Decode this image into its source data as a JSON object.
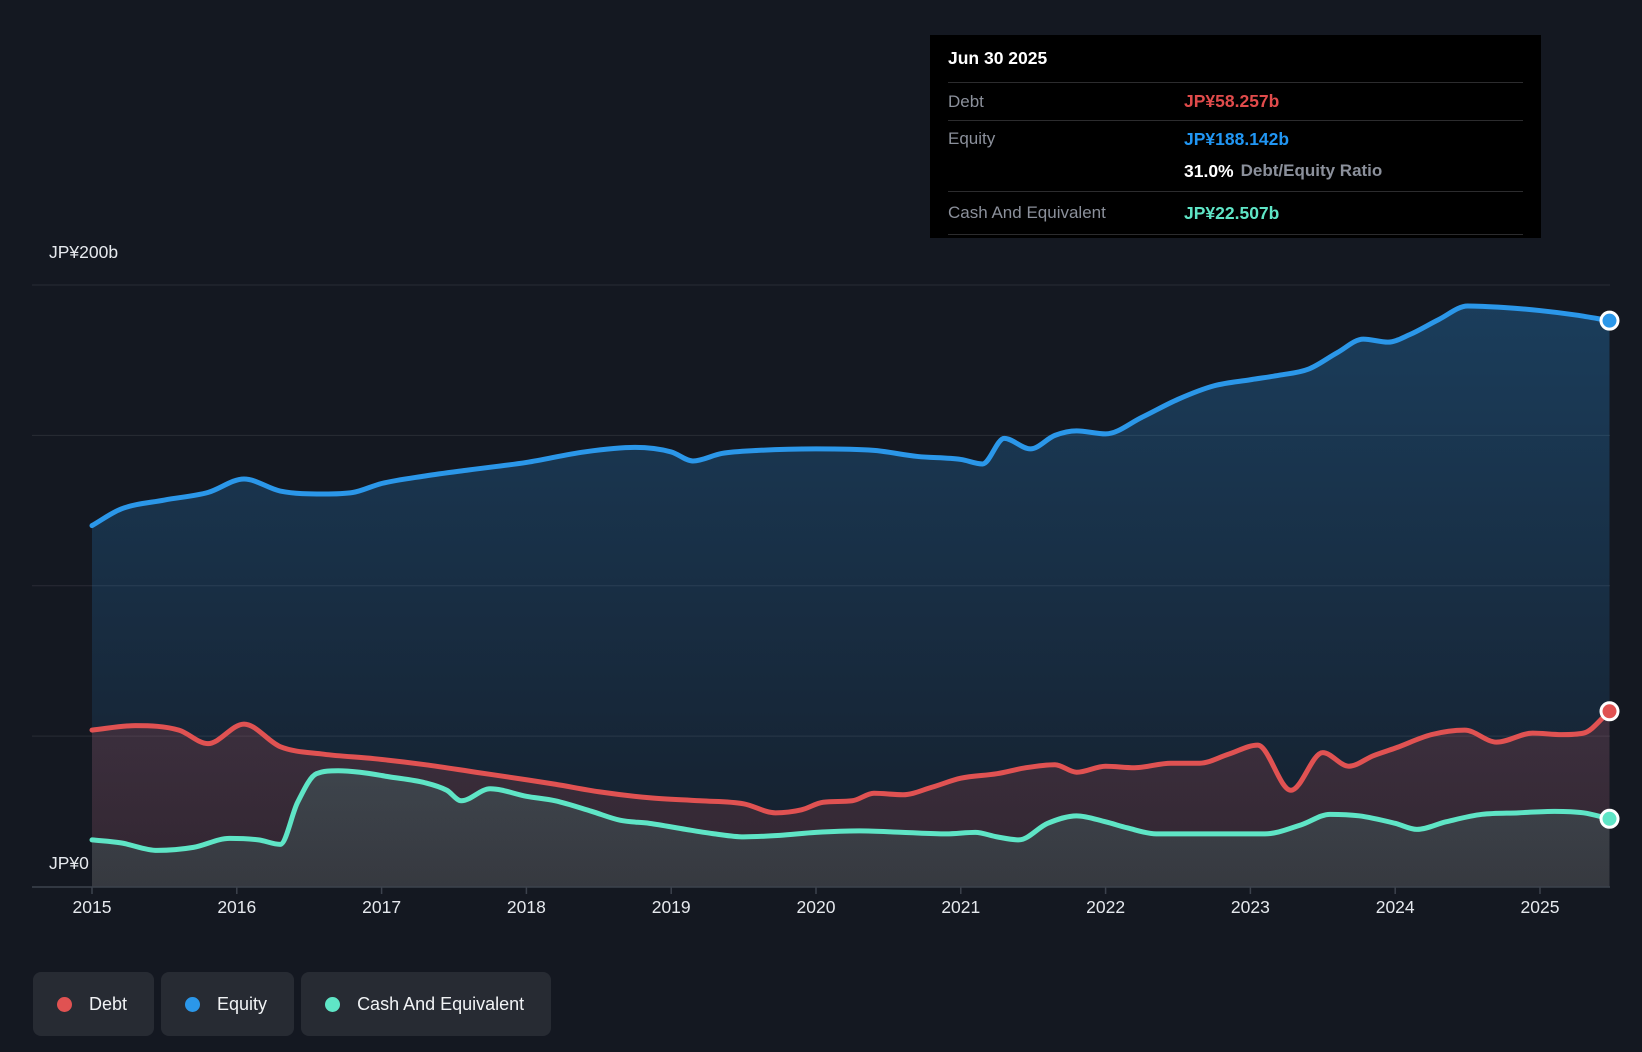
{
  "tooltip": {
    "date": "Jun 30 2025",
    "debt_label": "Debt",
    "debt_value": "JP¥58.257b",
    "equity_label": "Equity",
    "equity_value": "JP¥188.142b",
    "ratio_value": "31.0%",
    "ratio_label": "Debt/Equity Ratio",
    "cash_label": "Cash And Equivalent",
    "cash_value": "JP¥22.507b"
  },
  "axes": {
    "y_top_label": "JP¥200b",
    "y_zero_label": "JP¥0",
    "x_ticks": [
      "2015",
      "2016",
      "2017",
      "2018",
      "2019",
      "2020",
      "2021",
      "2022",
      "2023",
      "2024",
      "2025"
    ]
  },
  "legend": [
    {
      "label": "Debt",
      "color": "#e05252"
    },
    {
      "label": "Equity",
      "color": "#2b97e9"
    },
    {
      "label": "Cash And Equivalent",
      "color": "#5fe5c6"
    }
  ],
  "colors": {
    "debt": "#e05252",
    "equity": "#2b97e9",
    "cash": "#5fe5c6",
    "debt_value_text": "#e04b4b",
    "equity_value_text": "#2196f3",
    "cash_value_text": "#5fe5c6",
    "page_bg": "#141821",
    "tooltip_bg": "#000000",
    "grid": "rgba(255,255,255,0.09)",
    "axis": "#3c424d",
    "axis_label": "#e6e9ee",
    "muted_label": "#8b909b"
  },
  "chart_data": {
    "type": "area",
    "title": "Debt to Equity History (JP¥ billions)",
    "x_range": [
      2015,
      2025.48
    ],
    "y_range": [
      0,
      200
    ],
    "grid": true,
    "gridline_values": [
      200,
      150,
      100,
      50
    ],
    "y_axis_labeled_values": [
      200,
      0
    ],
    "legend_position": "bottom-left",
    "marker_on_last_point": true,
    "series": [
      {
        "name": "Equity",
        "color_key": "equity",
        "last_value_label": "JP¥188.142b",
        "points": [
          [
            2015.0,
            120
          ],
          [
            2015.2,
            125.5
          ],
          [
            2015.5,
            128.5
          ],
          [
            2015.8,
            131
          ],
          [
            2016.05,
            135.5
          ],
          [
            2016.3,
            131.5
          ],
          [
            2016.6,
            130.5
          ],
          [
            2016.8,
            131
          ],
          [
            2017.0,
            134
          ],
          [
            2017.3,
            136.5
          ],
          [
            2017.6,
            138.5
          ],
          [
            2018.0,
            141
          ],
          [
            2018.4,
            144.5
          ],
          [
            2018.75,
            146
          ],
          [
            2019.0,
            144.5
          ],
          [
            2019.15,
            141.5
          ],
          [
            2019.35,
            144
          ],
          [
            2019.6,
            145
          ],
          [
            2020.0,
            145.5
          ],
          [
            2020.4,
            145
          ],
          [
            2020.7,
            143
          ],
          [
            2021.0,
            142
          ],
          [
            2021.15,
            140.5
          ],
          [
            2021.3,
            149
          ],
          [
            2021.48,
            145.5
          ],
          [
            2021.65,
            150
          ],
          [
            2021.8,
            151.5
          ],
          [
            2022.0,
            150.5
          ],
          [
            2022.25,
            156
          ],
          [
            2022.5,
            162
          ],
          [
            2022.75,
            166.5
          ],
          [
            2023.0,
            168.5
          ],
          [
            2023.2,
            170
          ],
          [
            2023.4,
            172
          ],
          [
            2023.6,
            177.5
          ],
          [
            2023.78,
            182
          ],
          [
            2023.95,
            181
          ],
          [
            2024.1,
            183.5
          ],
          [
            2024.3,
            188.5
          ],
          [
            2024.5,
            193
          ],
          [
            2024.75,
            192.5
          ],
          [
            2025.0,
            191.5
          ],
          [
            2025.25,
            190
          ],
          [
            2025.48,
            188.142
          ]
        ]
      },
      {
        "name": "Debt",
        "color_key": "debt",
        "last_value_label": "JP¥58.257b",
        "points": [
          [
            2015.0,
            52
          ],
          [
            2015.3,
            53.5
          ],
          [
            2015.6,
            52
          ],
          [
            2015.8,
            47.5
          ],
          [
            2016.05,
            54
          ],
          [
            2016.3,
            46.5
          ],
          [
            2016.6,
            44
          ],
          [
            2016.95,
            42.5
          ],
          [
            2017.3,
            40.5
          ],
          [
            2017.65,
            38
          ],
          [
            2018.0,
            35.5
          ],
          [
            2018.2,
            34
          ],
          [
            2018.5,
            31.5
          ],
          [
            2018.85,
            29.5
          ],
          [
            2019.2,
            28.5
          ],
          [
            2019.5,
            27.5
          ],
          [
            2019.72,
            24.5
          ],
          [
            2019.9,
            25.5
          ],
          [
            2020.05,
            28
          ],
          [
            2020.25,
            28.5
          ],
          [
            2020.4,
            31
          ],
          [
            2020.6,
            30.5
          ],
          [
            2020.8,
            33
          ],
          [
            2021.0,
            36
          ],
          [
            2021.25,
            37.5
          ],
          [
            2021.45,
            39.5
          ],
          [
            2021.65,
            40.5
          ],
          [
            2021.8,
            38
          ],
          [
            2022.0,
            40
          ],
          [
            2022.2,
            39.5
          ],
          [
            2022.45,
            41
          ],
          [
            2022.65,
            41
          ],
          [
            2022.85,
            44
          ],
          [
            2023.05,
            47
          ],
          [
            2023.28,
            32
          ],
          [
            2023.5,
            44.5
          ],
          [
            2023.68,
            40
          ],
          [
            2023.85,
            43.5
          ],
          [
            2024.0,
            46
          ],
          [
            2024.25,
            50.5
          ],
          [
            2024.48,
            52
          ],
          [
            2024.7,
            48
          ],
          [
            2024.95,
            51
          ],
          [
            2025.15,
            50.5
          ],
          [
            2025.3,
            51
          ],
          [
            2025.48,
            58.257
          ]
        ]
      },
      {
        "name": "Cash And Equivalent",
        "color_key": "cash",
        "last_value_label": "JP¥22.507b",
        "points": [
          [
            2015.0,
            15.5
          ],
          [
            2015.2,
            14.5
          ],
          [
            2015.45,
            12
          ],
          [
            2015.7,
            13
          ],
          [
            2015.95,
            16
          ],
          [
            2016.15,
            15.5
          ],
          [
            2016.3,
            14
          ],
          [
            2016.42,
            28
          ],
          [
            2016.55,
            37.5
          ],
          [
            2016.7,
            38.5
          ],
          [
            2016.85,
            38
          ],
          [
            2017.05,
            36.5
          ],
          [
            2017.3,
            34.5
          ],
          [
            2017.45,
            32
          ],
          [
            2017.55,
            28.5
          ],
          [
            2017.75,
            32.5
          ],
          [
            2018.0,
            30
          ],
          [
            2018.2,
            28.5
          ],
          [
            2018.45,
            25
          ],
          [
            2018.65,
            22
          ],
          [
            2018.85,
            21
          ],
          [
            2019.1,
            19
          ],
          [
            2019.3,
            17.5
          ],
          [
            2019.5,
            16.5
          ],
          [
            2019.75,
            17
          ],
          [
            2020.0,
            18
          ],
          [
            2020.3,
            18.5
          ],
          [
            2020.6,
            18
          ],
          [
            2020.9,
            17.5
          ],
          [
            2021.1,
            18
          ],
          [
            2021.25,
            16.5
          ],
          [
            2021.4,
            15.5
          ],
          [
            2021.6,
            21
          ],
          [
            2021.8,
            23.5
          ],
          [
            2022.0,
            21.5
          ],
          [
            2022.15,
            19.5
          ],
          [
            2022.35,
            17.5
          ],
          [
            2022.7,
            17.5
          ],
          [
            2023.1,
            17.5
          ],
          [
            2023.35,
            20.5
          ],
          [
            2023.55,
            24
          ],
          [
            2023.75,
            23.5
          ],
          [
            2024.0,
            21
          ],
          [
            2024.15,
            19
          ],
          [
            2024.35,
            21.5
          ],
          [
            2024.6,
            24
          ],
          [
            2024.85,
            24.5
          ],
          [
            2025.1,
            25
          ],
          [
            2025.3,
            24.5
          ],
          [
            2025.48,
            22.507
          ]
        ]
      }
    ]
  }
}
